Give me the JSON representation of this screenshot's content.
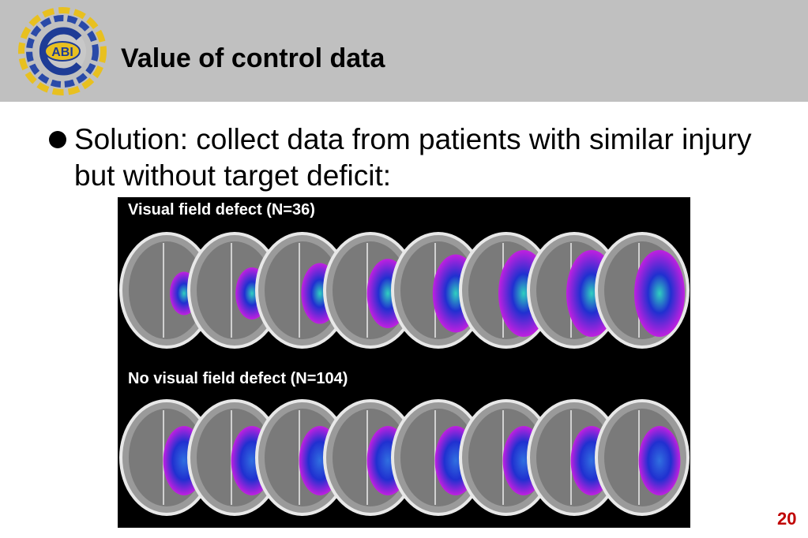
{
  "slide": {
    "title": "Value of control data",
    "bullet": "Solution: collect data from patients with similar injury but without target deficit:",
    "page_number": "20"
  },
  "logo": {
    "text": "ABI",
    "icon": "circular-logo-icon"
  },
  "figure": {
    "top_label": "Visual field defect  (N=36)",
    "bottom_label": "No visual field defect  (N=104)",
    "slices_per_row": 8
  },
  "colors": {
    "header_bg": "#c0c0c0",
    "figure_bg": "#000000",
    "overlay_magenta": "#c020e0",
    "overlay_blue": "#2030d0",
    "overlay_cyan": "#30d0c0",
    "page_number": "#c00000"
  }
}
